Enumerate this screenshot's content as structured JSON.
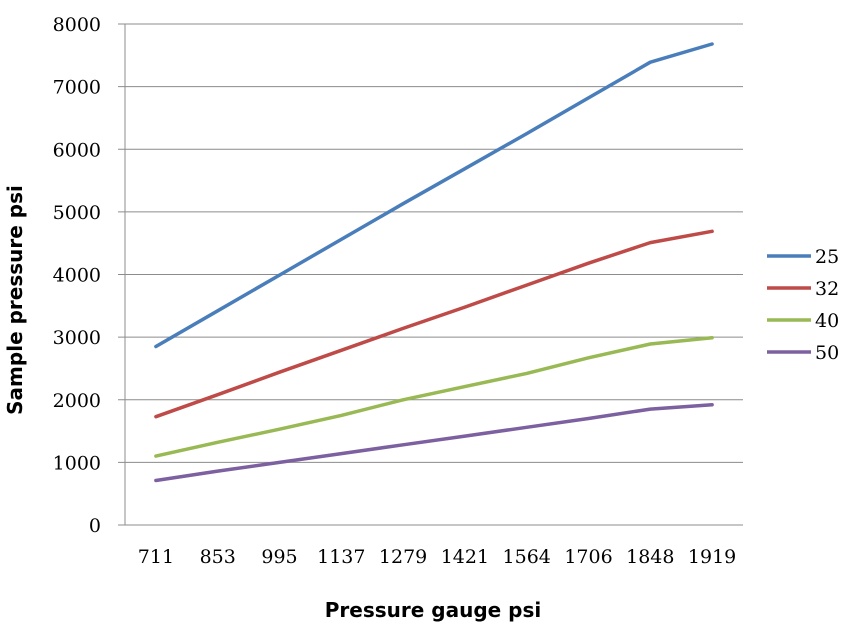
{
  "chart_data": {
    "type": "line",
    "xlabel": "Pressure gauge psi",
    "ylabel": "Sample pressure psi",
    "categories": [
      "711",
      "853",
      "995",
      "1137",
      "1279",
      "1421",
      "1564",
      "1706",
      "1848",
      "1919"
    ],
    "ylim": [
      0,
      8000
    ],
    "yticks": [
      "0",
      "1000",
      "2000",
      "3000",
      "4000",
      "5000",
      "6000",
      "7000",
      "8000"
    ],
    "grid": true,
    "legend_position": "right",
    "series": [
      {
        "name": "25",
        "color": "#4a7ebb",
        "values": [
          2850,
          3420,
          3990,
          4560,
          5130,
          5690,
          6250,
          6820,
          7390,
          7680
        ]
      },
      {
        "name": "32",
        "color": "#be4b48",
        "values": [
          1730,
          2080,
          2440,
          2790,
          3140,
          3480,
          3830,
          4180,
          4510,
          4690
        ]
      },
      {
        "name": "40",
        "color": "#98b954",
        "values": [
          1100,
          1320,
          1530,
          1750,
          2000,
          2210,
          2420,
          2670,
          2890,
          2990
        ]
      },
      {
        "name": "50",
        "color": "#7d60a0",
        "values": [
          710,
          860,
          1000,
          1140,
          1280,
          1420,
          1560,
          1700,
          1850,
          1920
        ]
      }
    ]
  }
}
